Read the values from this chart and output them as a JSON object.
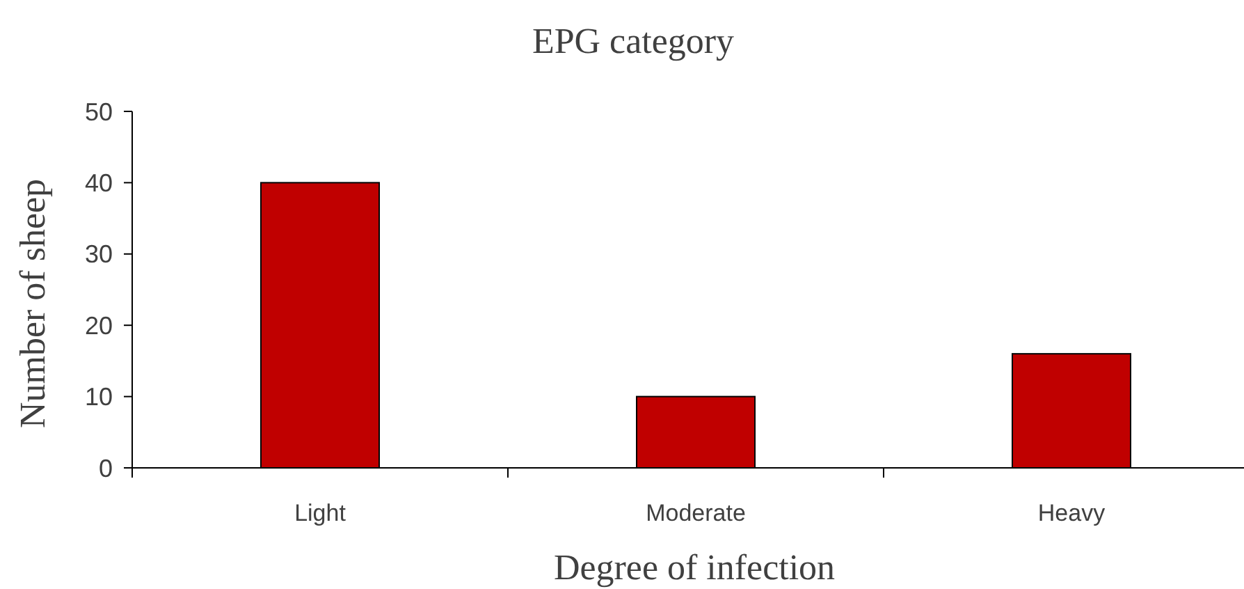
{
  "chart_data": {
    "type": "bar",
    "title": "EPG category",
    "xlabel": "Degree of infection",
    "ylabel": "Number of sheep",
    "categories": [
      "Light",
      "Moderate",
      "Heavy"
    ],
    "values": [
      40,
      10,
      16
    ],
    "color": "#c00000",
    "ylim": [
      0,
      50
    ],
    "yticks": [
      0,
      10,
      20,
      30,
      40,
      50
    ]
  }
}
